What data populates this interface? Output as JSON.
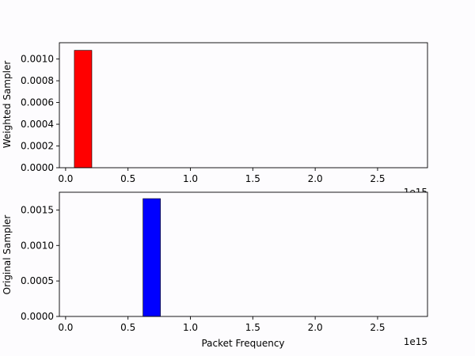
{
  "figure": {
    "background": "#fdfcfe"
  },
  "chart_data": [
    {
      "type": "bar",
      "title": "",
      "xlabel": "",
      "ylabel": "Weighted Sampler",
      "xlim": [
        -0.05,
        2.9
      ],
      "ylim": [
        0,
        0.00115
      ],
      "x_offset_text": "1e15",
      "x_scale_note": "x values in units of 1e15",
      "x_ticks": [
        0.0,
        0.5,
        1.0,
        1.5,
        2.0,
        2.5
      ],
      "x_tick_labels": [
        "0.0",
        "0.5",
        "1.0",
        "1.5",
        "2.0",
        "2.5"
      ],
      "y_ticks": [
        0,
        0.0002,
        0.0004,
        0.0006,
        0.0008,
        0.001
      ],
      "y_tick_labels": [
        "0.0000",
        "0.0002",
        "0.0004",
        "0.0006",
        "0.0008",
        "0.0010"
      ],
      "bar_width": 0.14,
      "bars": [
        {
          "x": 0.14,
          "value": 0.00108
        }
      ],
      "color": "#ff0000",
      "grid": false
    },
    {
      "type": "bar",
      "title": "",
      "xlabel": "Packet Frequency",
      "ylabel": "Original Sampler",
      "xlim": [
        -0.05,
        2.9
      ],
      "ylim": [
        0,
        0.00175
      ],
      "x_offset_text": "1e15",
      "x_scale_note": "x values in units of 1e15",
      "x_ticks": [
        0.0,
        0.5,
        1.0,
        1.5,
        2.0,
        2.5
      ],
      "x_tick_labels": [
        "0.0",
        "0.5",
        "1.0",
        "1.5",
        "2.0",
        "2.5"
      ],
      "y_ticks": [
        0,
        0.0005,
        0.001,
        0.0015
      ],
      "y_tick_labels": [
        "0.0000",
        "0.0005",
        "0.0010",
        "0.0015"
      ],
      "bar_width": 0.14,
      "bars": [
        {
          "x": 0.69,
          "value": 0.00166
        }
      ],
      "color": "#0000ff",
      "grid": false
    }
  ]
}
